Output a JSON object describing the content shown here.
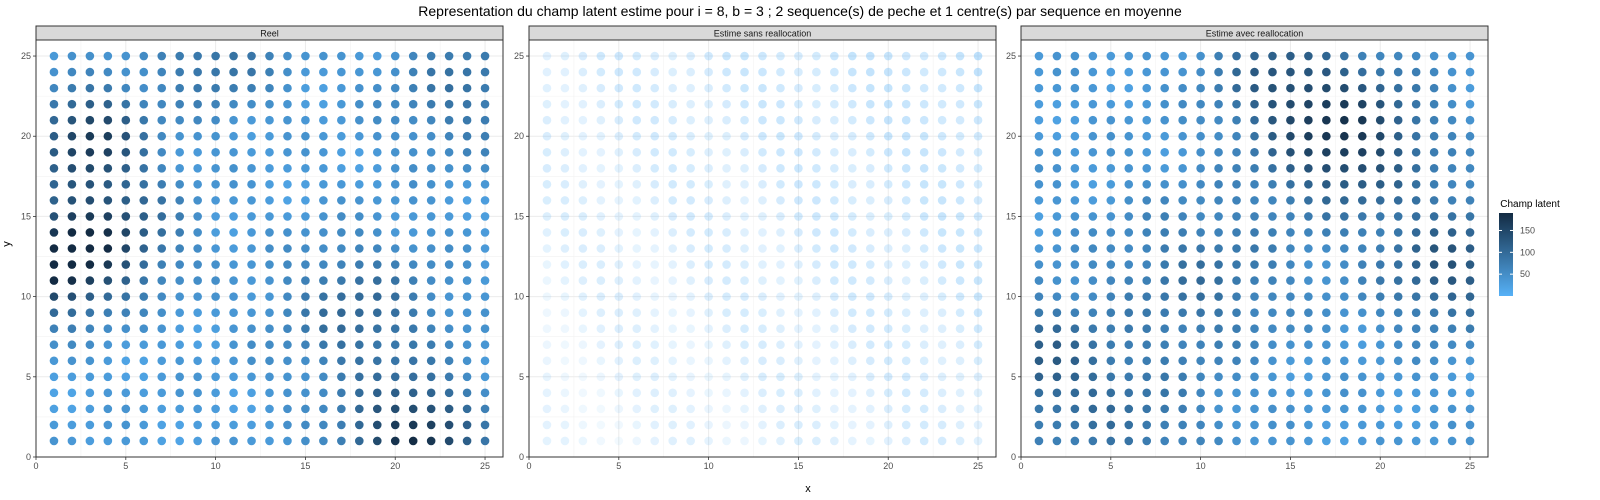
{
  "chart_data": {
    "type": "scatter",
    "title": "Representation du champ latent estime pour i = 8, b = 3 ; 2 sequence(s) de peche et 1 centre(s) par sequence en moyenne",
    "xlabel": "x",
    "ylabel": "y",
    "xlim": [
      0,
      26
    ],
    "ylim": [
      0,
      26
    ],
    "x_ticks": [
      0,
      5,
      10,
      15,
      20,
      25
    ],
    "y_ticks": [
      0,
      5,
      10,
      15,
      20,
      25
    ],
    "grid": true,
    "grid_points": {
      "x_from": 1,
      "x_to": 25,
      "y_from": 1,
      "y_to": 25,
      "step": 1
    },
    "legend": {
      "title": "Champ latent",
      "placement": "right",
      "breaks": [
        50,
        100,
        150
      ],
      "range": [
        0,
        190
      ],
      "low_color": "#56B1F7",
      "high_color": "#132B43"
    },
    "panels": [
      {
        "label": "Reel",
        "style": "solid",
        "base": 22,
        "hotspots": [
          {
            "x": 1,
            "y": 12,
            "value": 150,
            "spread": 2.2
          },
          {
            "x": 4,
            "y": 14,
            "value": 110,
            "spread": 2.6
          },
          {
            "x": 3,
            "y": 20,
            "value": 140,
            "spread": 2.0
          },
          {
            "x": 21,
            "y": 1,
            "value": 160,
            "spread": 2.5
          },
          {
            "x": 18,
            "y": 9,
            "value": 70,
            "spread": 3.0
          },
          {
            "x": 10,
            "y": 25,
            "value": 60,
            "spread": 2.5
          },
          {
            "x": 24,
            "y": 23,
            "value": 55,
            "spread": 3.0
          }
        ]
      },
      {
        "label": "Estime sans reallocation",
        "style": "faded",
        "base": 8,
        "hotspots": []
      },
      {
        "label": "Estime avec reallocation",
        "style": "solid",
        "base": 25,
        "hotspots": [
          {
            "x": 18,
            "y": 20,
            "value": 145,
            "spread": 3.0
          },
          {
            "x": 24,
            "y": 12,
            "value": 95,
            "spread": 2.8
          },
          {
            "x": 1,
            "y": 6,
            "value": 80,
            "spread": 2.5
          },
          {
            "x": 14,
            "y": 24,
            "value": 70,
            "spread": 2.5
          },
          {
            "x": 10,
            "y": 11,
            "value": 55,
            "spread": 3.5
          },
          {
            "x": 6,
            "y": 2,
            "value": 50,
            "spread": 3.0
          }
        ]
      }
    ]
  }
}
